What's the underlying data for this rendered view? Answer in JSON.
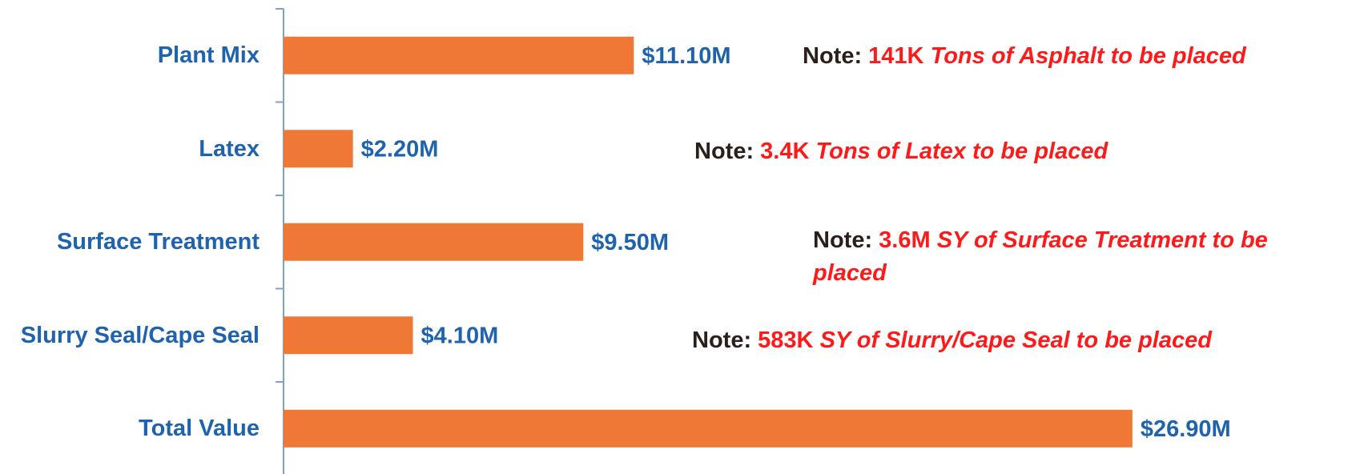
{
  "chart_data": {
    "type": "bar",
    "orientation": "horizontal",
    "categories": [
      "Plant Mix",
      "Latex",
      "Surface Treatment",
      "Slurry Seal/Cape Seal",
      "Total Value"
    ],
    "values": [
      11.1,
      2.2,
      9.5,
      4.1,
      26.9
    ],
    "value_labels": [
      "$11.10M",
      "$2.20M",
      "$9.50M",
      "$4.10M",
      "$26.90M"
    ],
    "color": "#f07836",
    "xlim": [
      0,
      30
    ],
    "annotations": [
      {
        "prefix": "Note:",
        "amount": "141K",
        "text": "Tons of Asphalt to be placed"
      },
      {
        "prefix": "Note:",
        "amount": "3.4K",
        "text": "Tons of Latex to be placed"
      },
      {
        "prefix": "Note:",
        "amount": "3.6M",
        "text": "SY of Surface Treatment to be placed"
      },
      {
        "prefix": "Note:",
        "amount": "583K",
        "text": "SY of Slurry/Cape Seal to be placed"
      }
    ]
  }
}
